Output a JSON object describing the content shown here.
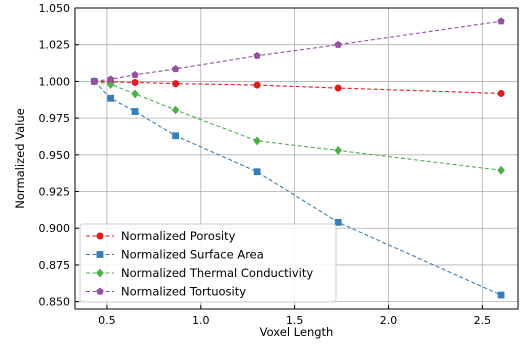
{
  "chart_data": {
    "type": "line",
    "title": "",
    "xlabel": "Voxel Length",
    "ylabel": "Normalized Value",
    "xlim": [
      0.33,
      2.69
    ],
    "ylim": [
      0.845,
      1.05
    ],
    "grid": true,
    "legend_position": "bottom-left",
    "x_ticks": [
      "0.5",
      "1.0",
      "1.5",
      "2.0",
      "2.5"
    ],
    "y_ticks": [
      "0.850",
      "0.875",
      "0.900",
      "0.925",
      "0.950",
      "0.975",
      "1.000",
      "1.025",
      "1.050"
    ],
    "x": [
      0.433,
      0.52,
      0.65,
      0.866,
      1.3,
      1.732,
      2.6
    ],
    "series": [
      {
        "name": "Normalized Porosity",
        "color": "#e41a1c",
        "marker": "circle",
        "values": [
          1.0,
          0.9997,
          0.9993,
          0.9985,
          0.9975,
          0.9955,
          0.9918
        ]
      },
      {
        "name": "Normalized Surface Area",
        "color": "#377eb8",
        "marker": "square",
        "values": [
          1.0,
          0.9885,
          0.9795,
          0.963,
          0.9385,
          0.904,
          0.8545
        ]
      },
      {
        "name": "Normalized Thermal Conductivity",
        "color": "#4daf4a",
        "marker": "diamond",
        "values": [
          1.0,
          0.998,
          0.9915,
          0.9805,
          0.9595,
          0.953,
          0.9395
        ]
      },
      {
        "name": "Normalized Tortuosity",
        "color": "#984ea3",
        "marker": "pentagon",
        "values": [
          1.0,
          1.0015,
          1.0045,
          1.0085,
          1.0175,
          1.025,
          1.041
        ]
      }
    ]
  }
}
